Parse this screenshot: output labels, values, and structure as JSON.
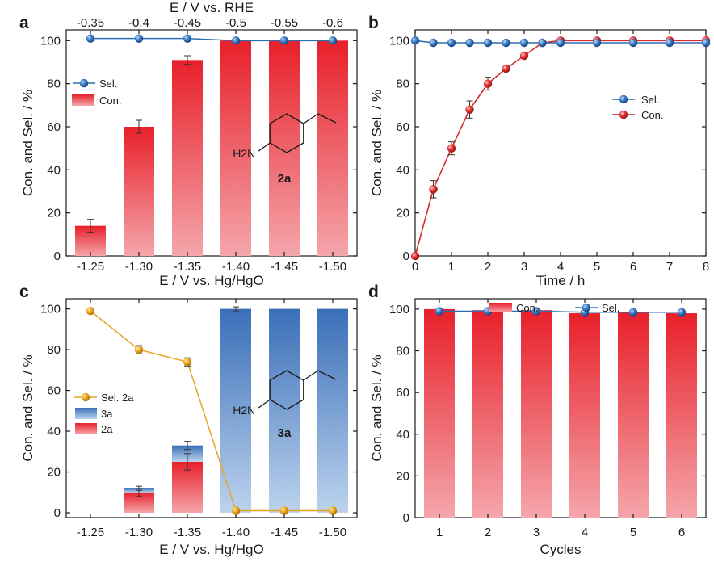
{
  "figure": {
    "colors": {
      "red_top": "#e8202a",
      "red_bottom": "#f4a6ab",
      "blue_top": "#3a6fb8",
      "blue_bottom": "#bcd3ee",
      "blue_line": "#2f6db5",
      "red_line": "#d42a2a",
      "orange": "#e9a322",
      "error": "#333333",
      "axis": "#1a1a1a"
    }
  },
  "chart_data": [
    {
      "panel": "a",
      "type": "bar",
      "label": "a",
      "categories": [
        "-1.25",
        "-1.30",
        "-1.35",
        "-1.40",
        "-1.45",
        "-1.50"
      ],
      "top_axis_label": "E / V vs. RHE",
      "top_categories": [
        "-0.35",
        "-0.4",
        "-0.45",
        "-0.5",
        "-0.55",
        "-0.6"
      ],
      "xlabel": "E / V vs. Hg/HgO",
      "ylabel": "Con. and Sel. / %",
      "ylim": [
        0,
        105
      ],
      "yticks": [
        "0",
        "20",
        "40",
        "60",
        "80",
        "100"
      ],
      "series": [
        {
          "name": "Con.",
          "kind": "bar",
          "values": [
            14,
            60,
            91,
            100,
            100,
            100
          ],
          "errors": [
            3,
            3,
            2,
            0,
            0,
            0
          ]
        },
        {
          "name": "Sel.",
          "kind": "line",
          "values": [
            101,
            101,
            101,
            100,
            100,
            100
          ],
          "errors": [
            0,
            0,
            0,
            0,
            1,
            0
          ]
        }
      ],
      "legend": [
        "Sel.",
        "Con."
      ],
      "compound": {
        "nh2": "H2N",
        "label": "2a"
      }
    },
    {
      "panel": "b",
      "type": "line",
      "label": "b",
      "xlabel": "Time / h",
      "ylabel": "Con. and Sel. / %",
      "xlim": [
        0,
        8
      ],
      "ylim": [
        0,
        105
      ],
      "xticks": [
        "0",
        "1",
        "2",
        "3",
        "4",
        "5",
        "6",
        "7",
        "8"
      ],
      "yticks": [
        "0",
        "20",
        "40",
        "60",
        "80",
        "100"
      ],
      "series": [
        {
          "name": "Sel.",
          "x": [
            0,
            0.5,
            1,
            1.5,
            2,
            2.5,
            3,
            3.5,
            4,
            5,
            6,
            7,
            8
          ],
          "values": [
            100,
            99,
            99,
            99,
            99,
            99,
            99,
            99,
            99,
            99,
            99,
            99,
            99
          ],
          "errors": [
            0,
            0,
            0,
            0,
            0,
            0,
            0,
            0,
            0,
            0,
            0,
            0,
            0
          ]
        },
        {
          "name": "Con.",
          "x": [
            0,
            0.5,
            1,
            1.5,
            2,
            2.5,
            3,
            3.5,
            4,
            5,
            6,
            7,
            8
          ],
          "values": [
            0,
            31,
            50,
            68,
            80,
            87,
            93,
            99,
            100,
            100,
            100,
            100,
            100
          ],
          "errors": [
            0,
            4,
            3,
            4,
            3,
            1,
            1,
            1,
            0,
            0,
            0,
            0,
            0
          ]
        }
      ],
      "legend": [
        "Sel.",
        "Con."
      ]
    },
    {
      "panel": "c",
      "type": "bar",
      "label": "c",
      "categories": [
        "-1.25",
        "-1.30",
        "-1.35",
        "-1.40",
        "-1.45",
        "-1.50"
      ],
      "xlabel": "E / V vs. Hg/HgO",
      "ylabel": "Con. and Sel. / %",
      "ylim": [
        0,
        105
      ],
      "yticks": [
        "0",
        "20",
        "40",
        "60",
        "80",
        "100"
      ],
      "series": [
        {
          "name": "2a",
          "kind": "stacked-bar",
          "values": [
            0,
            10,
            25,
            0,
            0,
            0
          ],
          "errors": [
            0,
            2,
            4,
            0,
            0,
            0
          ]
        },
        {
          "name": "3a",
          "kind": "stacked-bar",
          "values": [
            0,
            2,
            8,
            100,
            100,
            100
          ],
          "errors": [
            0,
            1,
            2,
            1,
            0,
            0
          ]
        },
        {
          "name": "Sel. 2a",
          "kind": "line",
          "values": [
            99,
            80,
            74,
            1,
            1,
            1
          ],
          "errors": [
            0,
            2,
            2,
            0,
            0,
            0
          ]
        }
      ],
      "legend": [
        "Sel. 2a",
        "3a",
        "2a"
      ],
      "compound": {
        "nh2": "H2N",
        "label": "3a"
      }
    },
    {
      "panel": "d",
      "type": "bar",
      "label": "d",
      "categories": [
        "1",
        "2",
        "3",
        "4",
        "5",
        "6"
      ],
      "xlabel": "Cycles",
      "ylabel": "Con. and Sel. / %",
      "ylim": [
        0,
        105
      ],
      "yticks": [
        "0",
        "20",
        "40",
        "60",
        "80",
        "100"
      ],
      "series": [
        {
          "name": "Con.",
          "kind": "bar",
          "values": [
            100,
            99.5,
            99.5,
            98,
            98.5,
            98
          ]
        },
        {
          "name": "Sel.",
          "kind": "line",
          "values": [
            99,
            99,
            99,
            98.5,
            98.5,
            98.5
          ]
        }
      ],
      "legend": [
        "Con.",
        "Sel."
      ]
    }
  ]
}
